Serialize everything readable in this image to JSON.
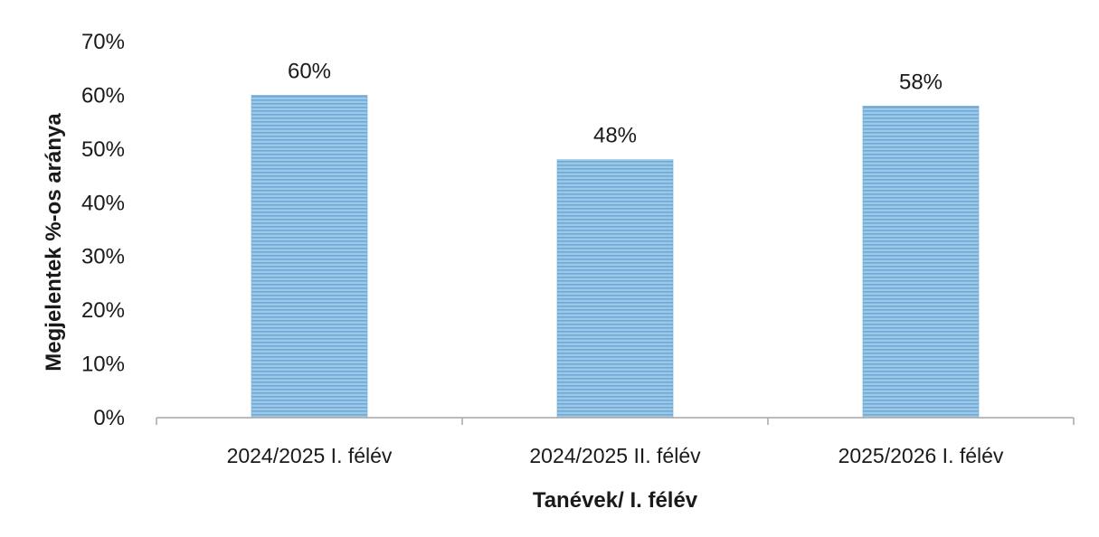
{
  "chart_data": {
    "type": "bar",
    "categories": [
      "2024/2025 I. félév",
      "2024/2025 II. félév",
      "2025/2026 I. félév"
    ],
    "values": [
      60,
      48,
      58
    ],
    "data_labels": [
      "60%",
      "48%",
      "58%"
    ],
    "xlabel": "Tanévek/ I. félév",
    "ylabel": "Megjelentek %-os aránya",
    "ylim": [
      0,
      70
    ],
    "yticks": [
      0,
      10,
      20,
      30,
      40,
      50,
      60,
      70
    ],
    "ytick_labels": [
      "0%",
      "10%",
      "20%",
      "30%",
      "40%",
      "50%",
      "60%",
      "70%"
    ],
    "grid": false,
    "legend": "none",
    "bar_color": "#9dc9e8",
    "bar_stripe_color": "#6fa9d6",
    "axis_color": "#a6a6a6"
  }
}
